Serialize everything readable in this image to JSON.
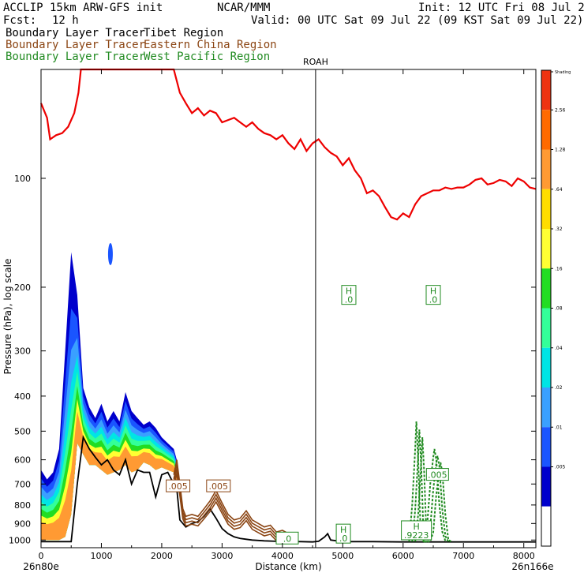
{
  "header": {
    "model": "ACCLIP 15km ARW-GFS init",
    "org": "NCAR/MMM",
    "init": "Init: 12 UTC Fri 08 Jul 22",
    "fcst_label": "Fcst:",
    "fcst_value": "12 h",
    "valid": "Valid: 00 UTC Sat 09 Jul 22 (09 KST Sat 09 Jul 22)"
  },
  "legend": [
    {
      "name": "Boundary Layer Tracer",
      "region": "Tibet Region",
      "color": "#000000"
    },
    {
      "name": "Boundary Layer Tracer",
      "region": "Eastern China Region",
      "color": "#8b4513"
    },
    {
      "name": "Boundary Layer Tracer",
      "region": "West Pacific Region",
      "color": "#228b22"
    }
  ],
  "chart_data": {
    "type": "cross-section",
    "xlabel": "Distance (km)",
    "ylabel": "Pressure (hPa), log scale",
    "xlim": [
      0,
      8200
    ],
    "ylim": [
      1050,
      50
    ],
    "x_ticks": [
      0,
      1000,
      2000,
      3000,
      4000,
      5000,
      6000,
      7000,
      8000
    ],
    "y_ticks": [
      100,
      200,
      300,
      400,
      500,
      600,
      700,
      800,
      900,
      1000
    ],
    "start_point": "26n80e",
    "end_point": "26n166e",
    "marker": {
      "label": "ROAH",
      "x": 4550
    },
    "colorbar": {
      "levels": [
        "Shading",
        "2.56",
        "1.28",
        ".64",
        ".32",
        ".16",
        ".08",
        ".04",
        ".02",
        ".01",
        ".005"
      ],
      "colors": [
        "#ee3311",
        "#ff6a00",
        "#ff9a33",
        "#ffdd00",
        "#ffff33",
        "#22dd22",
        "#33ff99",
        "#00e5e5",
        "#3aa0ff",
        "#1a55ff",
        "#0000cc",
        "#ffffff"
      ]
    },
    "tropopause": {
      "color": "#ee0000",
      "x": [
        0,
        100,
        150,
        250,
        350,
        450,
        550,
        620,
        660,
        2200,
        2300,
        2400,
        2500,
        2600,
        2700,
        2800,
        2900,
        3000,
        3100,
        3200,
        3300,
        3400,
        3500,
        3600,
        3700,
        3800,
        3900,
        4000,
        4100,
        4200,
        4300,
        4400,
        4500,
        4600,
        4700,
        4800,
        4900,
        5000,
        5100,
        5200,
        5300,
        5400,
        5500,
        5600,
        5700,
        5800,
        5900,
        6000,
        6100,
        6200,
        6300,
        6400,
        6500,
        6600,
        6700,
        6800,
        6900,
        7000,
        7100,
        7200,
        7300,
        7400,
        7500,
        7600,
        7700,
        7800,
        7900,
        8000,
        8100,
        8200
      ],
      "p": [
        62,
        68,
        78,
        76,
        75,
        72,
        66,
        58,
        50,
        50,
        58,
        62,
        66,
        64,
        67,
        65,
        66,
        70,
        69,
        68,
        70,
        72,
        70,
        73,
        75,
        76,
        78,
        76,
        80,
        83,
        78,
        84,
        80,
        78,
        82,
        85,
        87,
        92,
        88,
        95,
        100,
        110,
        108,
        112,
        120,
        128,
        130,
        125,
        128,
        118,
        112,
        110,
        108,
        108,
        106,
        107,
        106,
        106,
        104,
        101,
        100,
        104,
        103,
        101,
        102,
        105,
        100,
        102,
        106,
        107
      ]
    },
    "shading_tracer": {
      "region": "Tibet Region",
      "x": [
        0,
        100,
        200,
        300,
        400,
        500,
        600,
        700,
        800,
        900,
        1000,
        1100,
        1200,
        1300,
        1400,
        1500,
        1600,
        1700,
        1800,
        1900,
        2000,
        2100,
        2200,
        2250
      ],
      "p_top": [
        640,
        680,
        650,
        560,
        300,
        160,
        210,
        380,
        430,
        460,
        420,
        470,
        440,
        470,
        390,
        440,
        460,
        480,
        470,
        490,
        520,
        540,
        560,
        600
      ],
      "p_bot": [
        1000,
        1000,
        1000,
        1000,
        980,
        850,
        540,
        580,
        620,
        620,
        640,
        660,
        650,
        640,
        620,
        650,
        640,
        610,
        620,
        640,
        630,
        640,
        650,
        690
      ]
    },
    "tibet_boundary": {
      "color": "#000000",
      "x": [
        0,
        300,
        500,
        600,
        700,
        800,
        900,
        1000,
        1100,
        1200,
        1300,
        1400,
        1500,
        1600,
        1700,
        1800,
        1900,
        2000,
        2100,
        2200,
        2250,
        2300,
        2400,
        2500,
        2600,
        2700,
        2800,
        2900,
        3000,
        3100,
        3200,
        3300,
        3400,
        3500,
        3700,
        3900,
        4100,
        4300,
        4500,
        4600,
        4700,
        4750,
        4800,
        4900,
        5000,
        5500,
        6000,
        6500,
        7000,
        7500,
        8200
      ],
      "p": [
        1010,
        1010,
        1010,
        700,
        520,
        560,
        590,
        620,
        600,
        640,
        660,
        600,
        700,
        640,
        650,
        650,
        760,
        660,
        650,
        700,
        720,
        880,
        920,
        900,
        890,
        860,
        820,
        870,
        930,
        960,
        980,
        990,
        995,
        1000,
        1005,
        1008,
        1010,
        1010,
        1012,
        1008,
        980,
        960,
        1000,
        1005,
        1010,
        1010,
        1012,
        1012,
        1012,
        1012,
        1012
      ]
    },
    "china_tracer": {
      "color": "#8b4513",
      "x": [
        2200,
        2250,
        2300,
        2350,
        2400,
        2500,
        2600,
        2700,
        2800,
        2900,
        3000,
        3100,
        3200,
        3300,
        3400,
        3500,
        3600,
        3700,
        3800,
        3900,
        4000,
        4100,
        4200
      ],
      "p": [
        660,
        600,
        700,
        820,
        860,
        850,
        860,
        820,
        780,
        730,
        790,
        850,
        880,
        870,
        830,
        880,
        900,
        920,
        910,
        950,
        940,
        960,
        990
      ],
      "label_x": [
        2270,
        2940
      ],
      "label_p": [
        710,
        710
      ],
      "label_text": ".005"
    },
    "wpac_tracer": {
      "color": "#228b22",
      "x": [
        6100,
        6150,
        6200,
        6220,
        6250,
        6280,
        6300,
        6350,
        6400,
        6450,
        6500,
        6520,
        6550,
        6600,
        6650,
        6700
      ],
      "p": [
        1010,
        800,
        560,
        470,
        600,
        850,
        1000,
        1010,
        900,
        700,
        590,
        560,
        600,
        800,
        950,
        1005
      ],
      "labels": [
        {
          "x": 4080,
          "p": 990,
          "text": ".0"
        },
        {
          "x": 6570,
          "p": 660,
          "text": ".005"
        }
      ]
    },
    "h_markers": [
      {
        "x": 5100,
        "p": 210,
        "h": "H",
        "value": ".0"
      },
      {
        "x": 6500,
        "p": 210,
        "h": "H",
        "value": ".0"
      },
      {
        "x": 5010,
        "p": 960,
        "h": "H",
        "value": ".0"
      },
      {
        "x": 6220,
        "p": 940,
        "h": "H",
        "value": ".9223"
      }
    ]
  }
}
